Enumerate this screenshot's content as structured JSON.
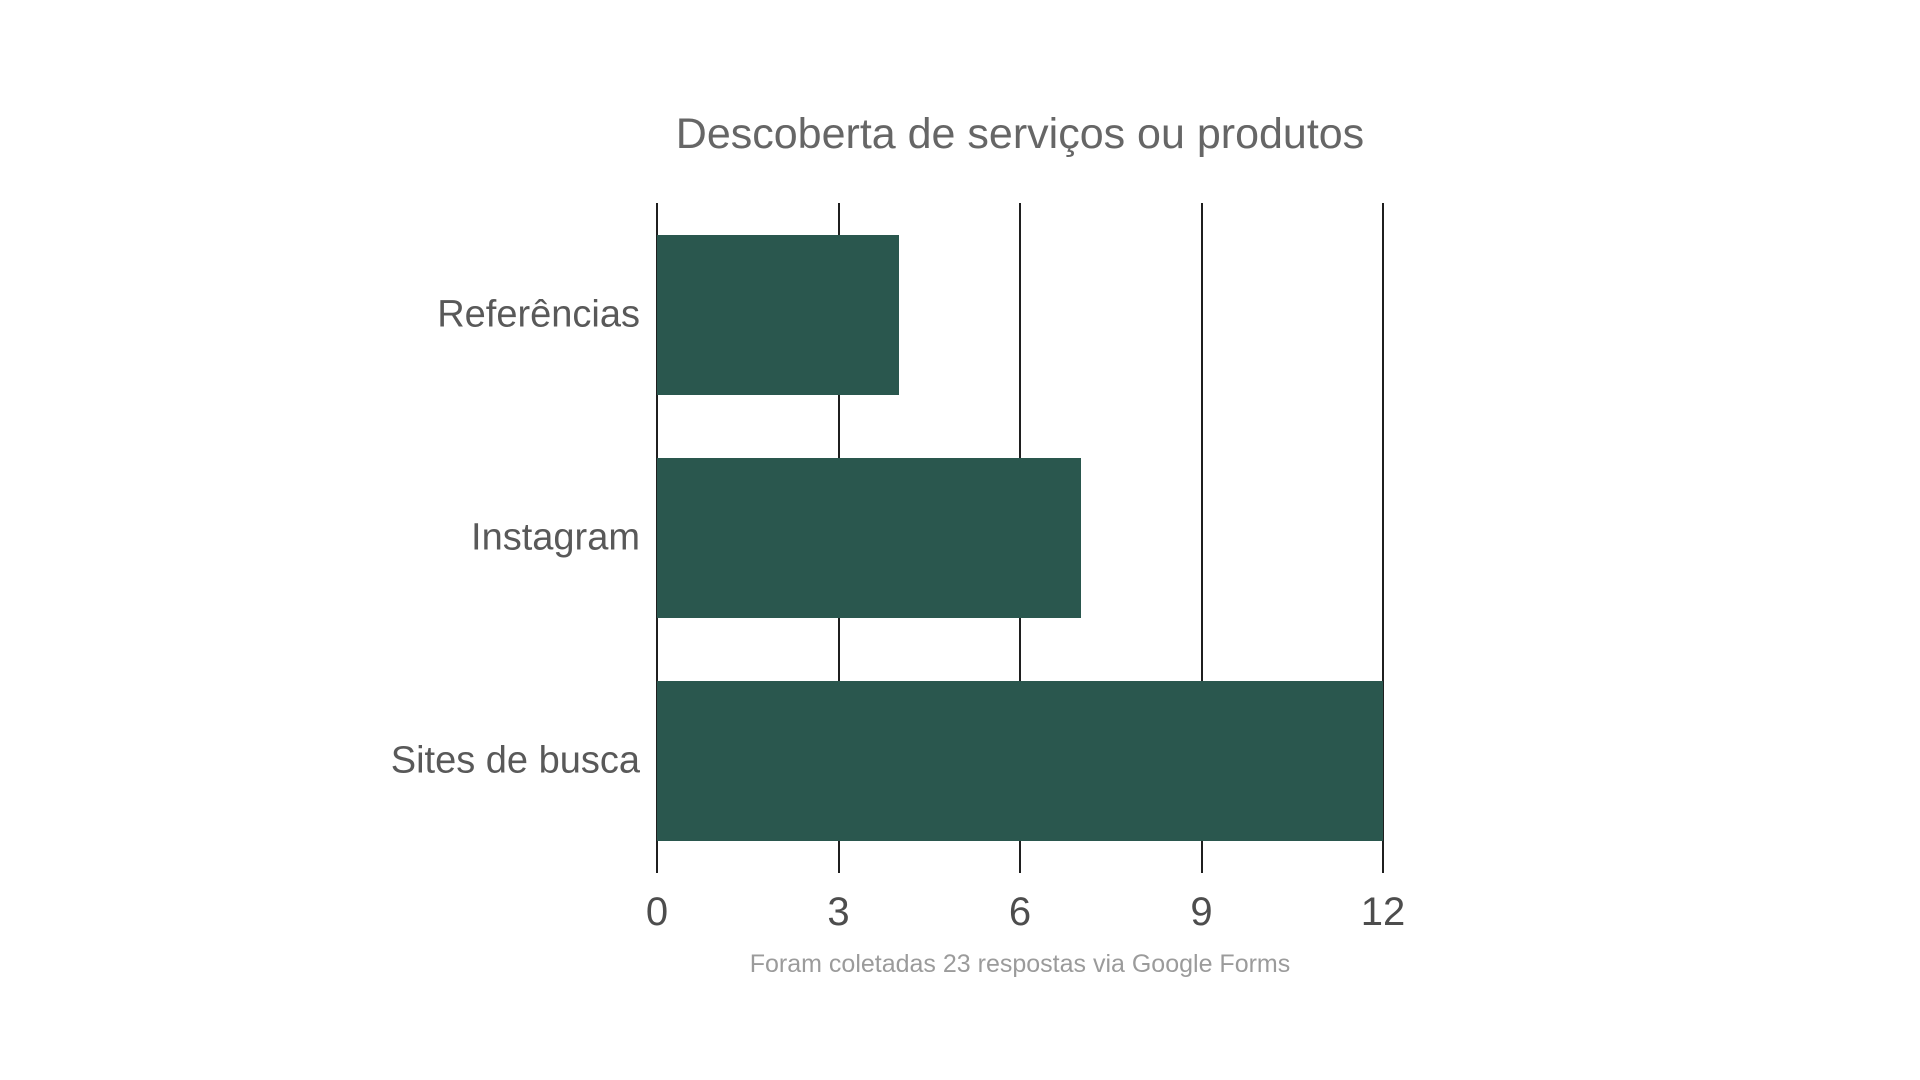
{
  "chart": {
    "colors": {
      "bar": "#2a574e",
      "title_text": "#666666",
      "category_label_text": "#595959",
      "tick_label_text": "#4d4d4d",
      "caption_text": "#9b9b9b",
      "gridline": "#1f1f1f",
      "background": "#ffffff"
    }
  },
  "chart_data": {
    "type": "bar",
    "orientation": "horizontal",
    "title": "Descoberta de serviços ou produtos",
    "caption": "Foram coletadas 23 respostas via Google Forms",
    "categories": [
      "Referências",
      "Instagram",
      "Sites de busca"
    ],
    "values": [
      4,
      7,
      12
    ],
    "xlabel": "",
    "ylabel": "",
    "xlim": [
      0,
      12
    ],
    "xticks": [
      0,
      3,
      6,
      9,
      12
    ],
    "grid": "vertical-only",
    "legend": "none"
  }
}
